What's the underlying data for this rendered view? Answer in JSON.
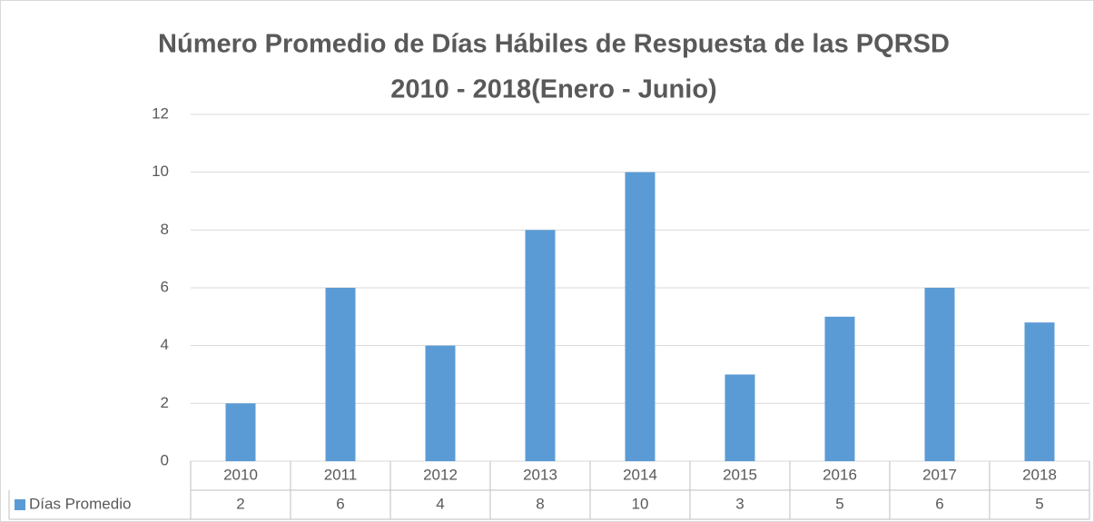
{
  "chart_data": {
    "type": "bar",
    "title": [
      "Número Promedio de Días Hábiles de Respuesta de las PQRSD",
      "2010 - 2018(Enero - Junio)"
    ],
    "categories": [
      "2010",
      "2011",
      "2012",
      "2013",
      "2014",
      "2015",
      "2016",
      "2017",
      "2018"
    ],
    "series": [
      {
        "name": "Días Promedio",
        "color": "#5b9bd5",
        "values": [
          2,
          6,
          4,
          8,
          10,
          3,
          5,
          6,
          4.8
        ],
        "value_labels": [
          "2",
          "6",
          "4",
          "8",
          "10",
          "3",
          "5",
          "6",
          "5"
        ]
      }
    ],
    "ylim": [
      0,
      12
    ],
    "yticks": [
      0,
      2,
      4,
      6,
      8,
      10,
      12
    ],
    "grid": true,
    "data_table": true
  }
}
